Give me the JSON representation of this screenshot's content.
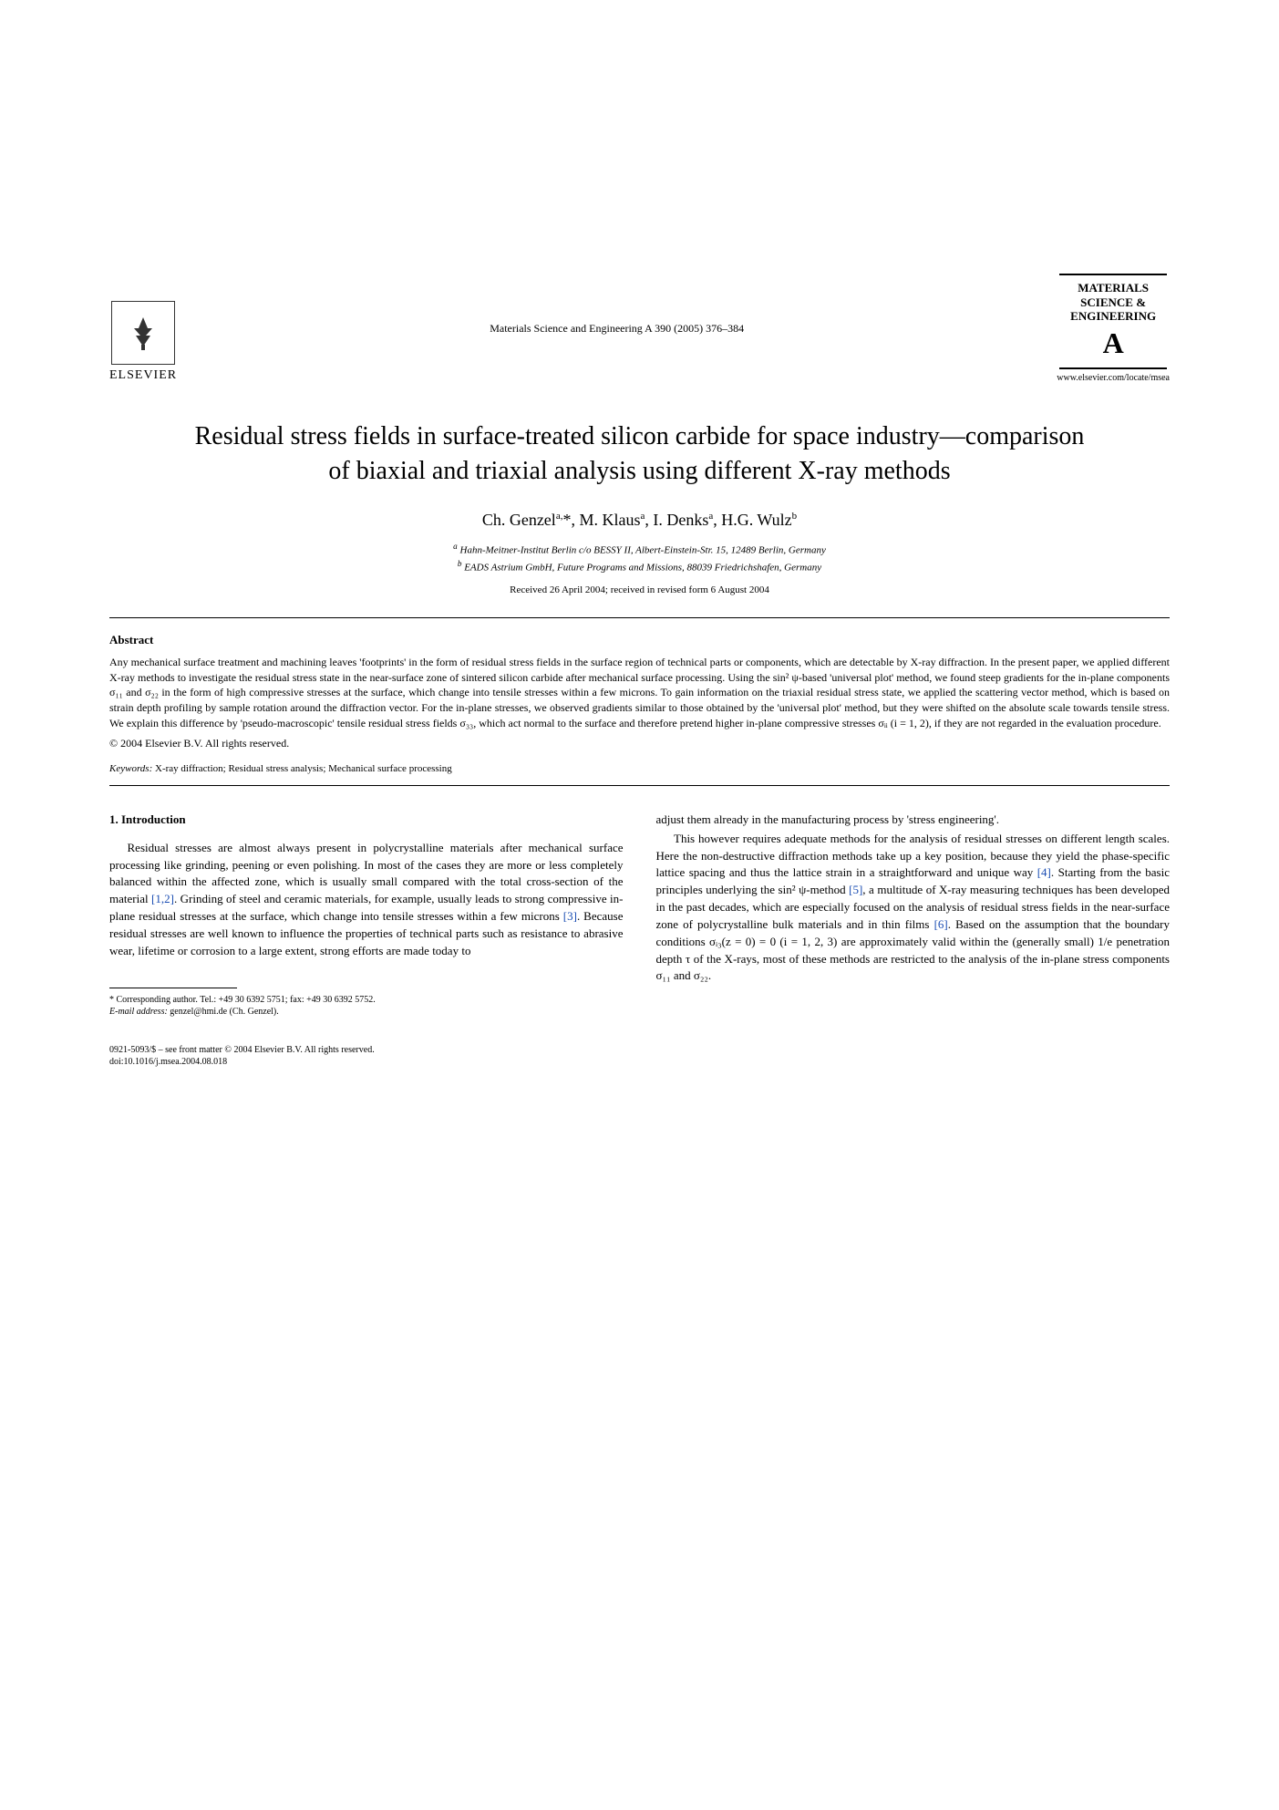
{
  "header": {
    "publisher_name": "ELSEVIER",
    "citation": "Materials Science and Engineering A 390 (2005) 376–384",
    "journal_box_line1": "MATERIALS",
    "journal_box_line2": "SCIENCE &",
    "journal_box_line3": "ENGINEERING",
    "journal_letter": "A",
    "journal_url": "www.elsevier.com/locate/msea"
  },
  "title": "Residual stress fields in surface-treated silicon carbide for space industry—comparison of biaxial and triaxial analysis using different X-ray methods",
  "authors_html": "Ch. Genzel<sup>a,</sup>*, M. Klaus<sup>a</sup>, I. Denks<sup>a</sup>, H.G. Wulz<sup>b</sup>",
  "affiliations": {
    "a": "Hahn-Meitner-Institut Berlin c/o BESSY II, Albert-Einstein-Str. 15, 12489 Berlin, Germany",
    "b": "EADS Astrium GmbH, Future Programs and Missions, 88039 Friedrichshafen, Germany"
  },
  "dates": "Received 26 April 2004; received in revised form 6 August 2004",
  "abstract": {
    "heading": "Abstract",
    "body": "Any mechanical surface treatment and machining leaves 'footprints' in the form of residual stress fields in the surface region of technical parts or components, which are detectable by X-ray diffraction. In the present paper, we applied different X-ray methods to investigate the residual stress state in the near-surface zone of sintered silicon carbide after mechanical surface processing. Using the sin² ψ-based 'universal plot' method, we found steep gradients for the in-plane components σ₁₁ and σ₂₂ in the form of high compressive stresses at the surface, which change into tensile stresses within a few microns. To gain information on the triaxial residual stress state, we applied the scattering vector method, which is based on strain depth profiling by sample rotation around the diffraction vector. For the in-plane stresses, we observed gradients similar to those obtained by the 'universal plot' method, but they were shifted on the absolute scale towards tensile stress. We explain this difference by 'pseudo-macroscopic' tensile residual stress fields σ₃₃, which act normal to the surface and therefore pretend higher in-plane compressive stresses σᵢᵢ (i = 1, 2), if they are not regarded in the evaluation procedure.",
    "copyright": "© 2004 Elsevier B.V. All rights reserved."
  },
  "keywords": {
    "label": "Keywords:",
    "text": "X-ray diffraction; Residual stress analysis; Mechanical surface processing"
  },
  "section1": {
    "heading": "1. Introduction",
    "para1_a": "Residual stresses are almost always present in polycrystalline materials after mechanical surface processing like grinding, peening or even polishing. In most of the cases they are more or less completely balanced within the affected zone, which is usually small compared with the total cross-section of the material ",
    "ref1": "[1,2]",
    "para1_b": ". Grinding of steel and ceramic materials, for example, usually leads to strong compressive in-plane residual stresses at the surface, which change into tensile stresses within a few microns ",
    "ref2": "[3]",
    "para1_c": ". Because residual stresses are well known to influence the properties of technical parts such as resistance to abrasive wear, lifetime or corrosion to a large extent, strong efforts are made today to",
    "para2_a": "adjust them already in the manufacturing process by 'stress engineering'.",
    "para3_a": "This however requires adequate methods for the analysis of residual stresses on different length scales. Here the non-destructive diffraction methods take up a key position, because they yield the phase-specific lattice spacing and thus the lattice strain in a straightforward and unique way ",
    "ref3": "[4]",
    "para3_b": ". Starting from the basic principles underlying the sin² ψ-method ",
    "ref4": "[5]",
    "para3_c": ", a multitude of X-ray measuring techniques has been developed in the past decades, which are especially focused on the analysis of residual stress fields in the near-surface zone of polycrystalline bulk materials and in thin films ",
    "ref5": "[6]",
    "para3_d": ". Based on the assumption that the boundary conditions σᵢ₃(z = 0) = 0 (i = 1, 2, 3) are approximately valid within the (generally small) 1/e penetration depth τ of the X-rays, most of these methods are restricted to the analysis of the in-plane stress components σ₁₁ and σ₂₂."
  },
  "footnote": {
    "corresponding": "* Corresponding author. Tel.: +49 30 6392 5751; fax: +49 30 6392 5752.",
    "email_label": "E-mail address:",
    "email": "genzel@hmi.de (Ch. Genzel)."
  },
  "footer": {
    "line1": "0921-5093/$ – see front matter © 2004 Elsevier B.V. All rights reserved.",
    "line2": "doi:10.1016/j.msea.2004.08.018"
  }
}
